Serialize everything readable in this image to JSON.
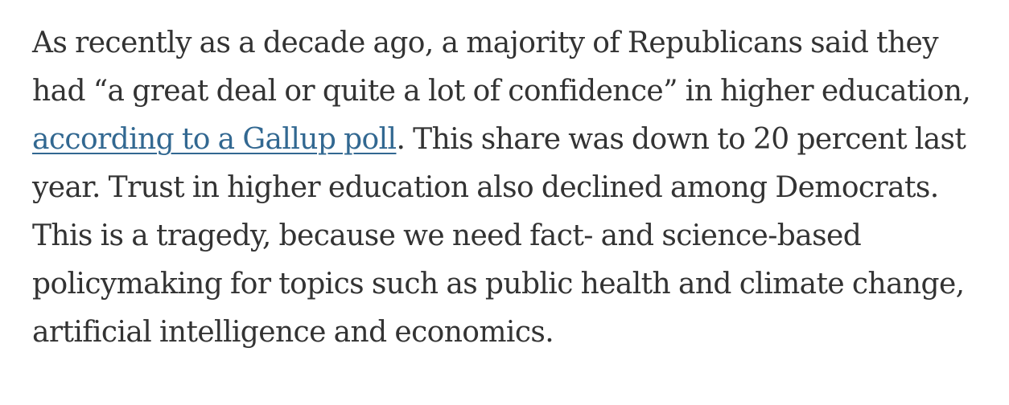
{
  "paragraph": {
    "line1": "As recently as a decade ago, a majority of Republicans said they",
    "line2": "had “a great deal or quite a lot of confidence” in higher education,",
    "link_text": "according to a Gallup poll",
    "line3_rest": ". This share was down to 20 percent last",
    "line4": "year. Trust in higher education also declined among Democrats.",
    "line5": "This is a tragedy, because we need fact- and science-based",
    "line6": "policymaking for topics such as public health and climate change,",
    "line7": "artificial intelligence and economics."
  },
  "colors": {
    "text": "#333333",
    "link": "#326891",
    "background": "#ffffff"
  }
}
